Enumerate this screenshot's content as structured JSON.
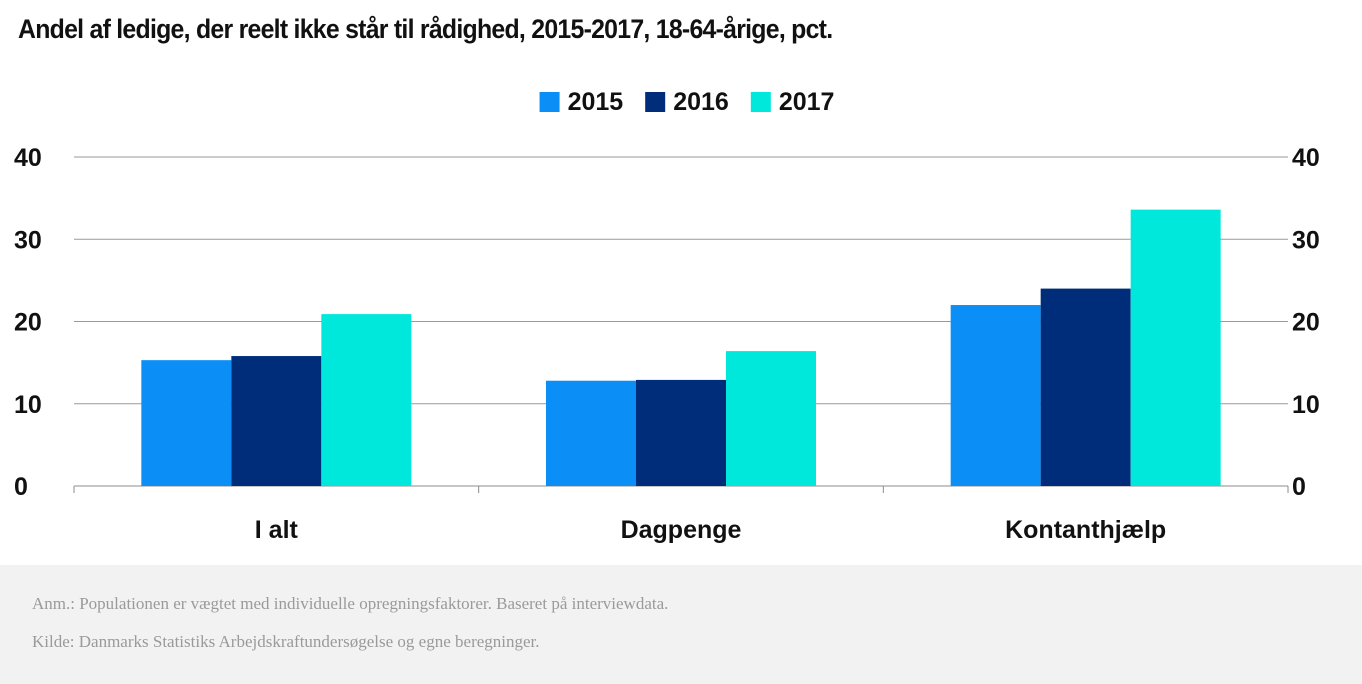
{
  "chart_data": {
    "type": "bar",
    "title": "Andel af ledige, der reelt ikke står til rådighed, 2015-2017, 18-64-årige, pct.",
    "categories": [
      "I alt",
      "Dagpenge",
      "Kontanthjælp"
    ],
    "series": [
      {
        "name": "2015",
        "color": "#0b8ef5",
        "values": [
          15.3,
          12.8,
          22.0
        ]
      },
      {
        "name": "2016",
        "color": "#002d7a",
        "values": [
          15.8,
          12.9,
          24.0
        ]
      },
      {
        "name": "2017",
        "color": "#00e8dc",
        "values": [
          20.9,
          16.4,
          33.6
        ]
      }
    ],
    "ylim": [
      0,
      40
    ],
    "yticks": [
      "0",
      "10",
      "20",
      "30",
      "40"
    ],
    "y2ticks": [
      "0",
      "10",
      "20",
      "30",
      "40"
    ],
    "grid": true,
    "legend": "top-center",
    "xlabel": "",
    "ylabel": ""
  },
  "footer": {
    "note": "Anm.: Populationen er vægtet med individuelle opregningsfaktorer. Baseret på interviewdata.",
    "source": "Kilde: Danmarks Statistiks Arbejdskraftundersøgelse og egne beregninger."
  }
}
